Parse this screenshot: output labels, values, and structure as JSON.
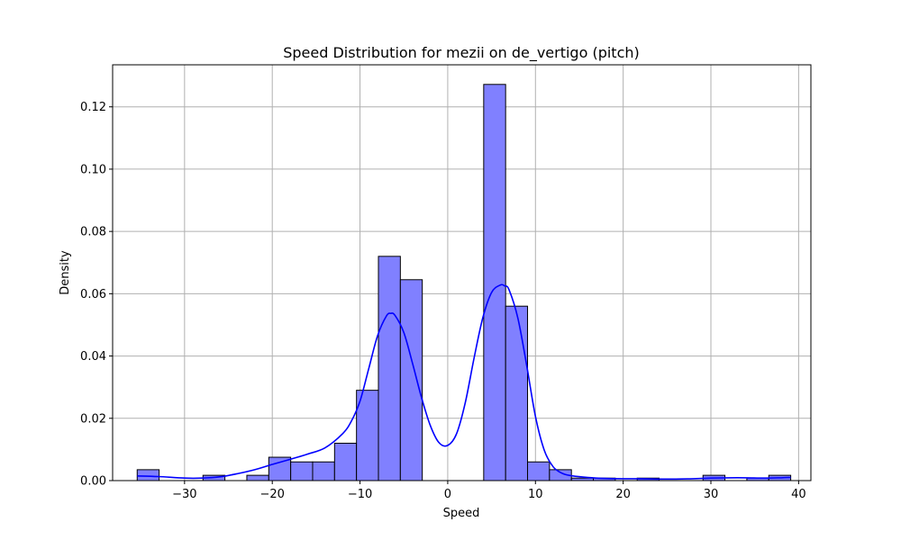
{
  "chart_data": {
    "type": "bar",
    "title": "Speed Distribution for mezii on de_vertigo (pitch)",
    "xlabel": "Speed",
    "ylabel": "Density",
    "xlim": [
      -38.2,
      41.4
    ],
    "ylim": [
      0,
      0.1335
    ],
    "grid": true,
    "x_ticks": [
      -30,
      -20,
      -10,
      0,
      10,
      20,
      30,
      40
    ],
    "y_ticks": [
      0.0,
      0.02,
      0.04,
      0.06,
      0.08,
      0.1,
      0.12
    ],
    "x_tick_labels": [
      "−30",
      "−20",
      "−10",
      "0",
      "10",
      "20",
      "30",
      "40"
    ],
    "y_tick_labels": [
      "0.00",
      "0.02",
      "0.04",
      "0.06",
      "0.08",
      "0.10",
      "0.12"
    ],
    "colors": {
      "bar_fill": "#8080ff",
      "bar_edge": "#000000",
      "kde_line": "#0000ff",
      "grid": "#b0b0b0"
    },
    "bins": [
      {
        "x0": -35.4,
        "x1": -32.9,
        "density": 0.0035
      },
      {
        "x0": -32.9,
        "x1": -30.4,
        "density": 0.0
      },
      {
        "x0": -30.4,
        "x1": -27.9,
        "density": 0.0
      },
      {
        "x0": -27.9,
        "x1": -25.4,
        "density": 0.0017
      },
      {
        "x0": -25.4,
        "x1": -22.9,
        "density": 0.0
      },
      {
        "x0": -22.9,
        "x1": -20.4,
        "density": 0.0017
      },
      {
        "x0": -20.4,
        "x1": -17.9,
        "density": 0.0075
      },
      {
        "x0": -17.9,
        "x1": -15.4,
        "density": 0.006
      },
      {
        "x0": -15.4,
        "x1": -12.9,
        "density": 0.006
      },
      {
        "x0": -12.9,
        "x1": -10.4,
        "density": 0.012
      },
      {
        "x0": -10.4,
        "x1": -7.9,
        "density": 0.029
      },
      {
        "x0": -7.9,
        "x1": -5.4,
        "density": 0.072
      },
      {
        "x0": -5.4,
        "x1": -2.9,
        "density": 0.0645
      },
      {
        "x0": -2.9,
        "x1": -0.4,
        "density": 0.0
      },
      {
        "x0": -0.4,
        "x1": 2.1,
        "density": 0.0
      },
      {
        "x0": 2.1,
        "x1": 4.1,
        "density": 0.0
      },
      {
        "x0": 4.1,
        "x1": 6.6,
        "density": 0.1272
      },
      {
        "x0": 6.6,
        "x1": 9.1,
        "density": 0.056
      },
      {
        "x0": 9.1,
        "x1": 11.6,
        "density": 0.006
      },
      {
        "x0": 11.6,
        "x1": 14.1,
        "density": 0.0035
      },
      {
        "x0": 14.1,
        "x1": 16.6,
        "density": 0.0008
      },
      {
        "x0": 16.6,
        "x1": 19.1,
        "density": 0.0008
      },
      {
        "x0": 19.1,
        "x1": 21.6,
        "density": 0.0
      },
      {
        "x0": 21.6,
        "x1": 24.1,
        "density": 0.0008
      },
      {
        "x0": 24.1,
        "x1": 26.6,
        "density": 0.0
      },
      {
        "x0": 26.6,
        "x1": 29.1,
        "density": 0.0
      },
      {
        "x0": 29.1,
        "x1": 31.6,
        "density": 0.0017
      },
      {
        "x0": 31.6,
        "x1": 34.1,
        "density": 0.0
      },
      {
        "x0": 34.1,
        "x1": 36.6,
        "density": 0.0008
      },
      {
        "x0": 36.6,
        "x1": 39.1,
        "density": 0.0017
      }
    ],
    "kde": {
      "x": [
        -35.4,
        -33,
        -30,
        -28,
        -26,
        -24,
        -22,
        -20,
        -18,
        -16,
        -14,
        -12,
        -11,
        -10,
        -9,
        -8,
        -7,
        -6.5,
        -6,
        -5,
        -4,
        -3,
        -2,
        -1,
        0,
        1,
        2,
        3,
        4,
        5,
        6,
        6.5,
        7,
        8,
        9,
        10,
        11,
        12,
        13,
        14,
        16,
        18,
        20,
        22,
        24,
        26,
        28,
        30,
        32,
        34,
        36,
        38,
        39.1
      ],
      "y": [
        0.0015,
        0.0013,
        0.0008,
        0.0008,
        0.0012,
        0.0022,
        0.0035,
        0.0052,
        0.0068,
        0.0085,
        0.0105,
        0.015,
        0.019,
        0.0255,
        0.036,
        0.0465,
        0.0528,
        0.0537,
        0.053,
        0.0475,
        0.0375,
        0.0268,
        0.0178,
        0.0122,
        0.0113,
        0.015,
        0.025,
        0.0393,
        0.0523,
        0.0604,
        0.0628,
        0.0625,
        0.0612,
        0.0521,
        0.037,
        0.0206,
        0.0098,
        0.0045,
        0.0024,
        0.0016,
        0.001,
        0.0007,
        0.0006,
        0.0006,
        0.0005,
        0.0005,
        0.0006,
        0.0008,
        0.0009,
        0.0009,
        0.0008,
        0.0009,
        0.001
      ]
    }
  }
}
